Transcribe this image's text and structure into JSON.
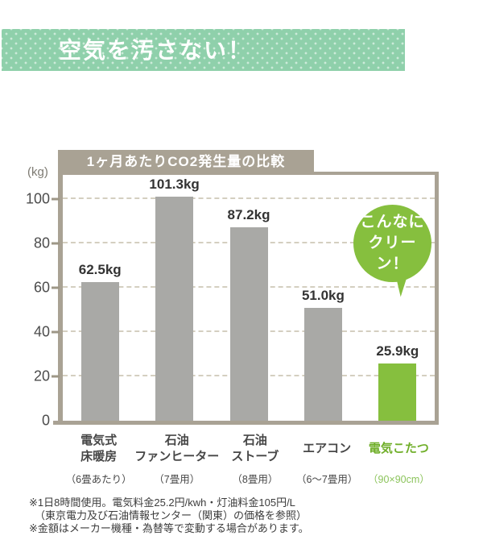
{
  "header": {
    "title": "空気を汚さない！"
  },
  "chart": {
    "title": "1ヶ月あたりCO2発生量の比較",
    "unit_label": "(kg)",
    "bubble": {
      "line1": "こんなに",
      "line2": "クリーン！"
    }
  },
  "chart_data": {
    "type": "bar",
    "title": "1ヶ月あたりCO2発生量の比較",
    "ylabel": "(kg)",
    "ylim": [
      0,
      111
    ],
    "yticks": [
      0,
      20,
      40,
      60,
      80,
      100
    ],
    "grid": "horizontal-dashed",
    "categories": [
      "電気式床暖房",
      "石油ファンヒーター",
      "石油ストーブ",
      "エアコン",
      "電気こたつ"
    ],
    "values": [
      62.5,
      101.3,
      87.2,
      51.0,
      25.9
    ],
    "bars": [
      {
        "name_lines": [
          "電気式",
          "床暖房"
        ],
        "sub": "（6畳あたり）",
        "value": 62.5,
        "value_label": "62.5kg",
        "color": "#a9a9a6",
        "text_color": "#474747",
        "sub_color": "#474747"
      },
      {
        "name_lines": [
          "石油",
          "ファンヒーター"
        ],
        "sub": "（7畳用）",
        "value": 101.3,
        "value_label": "101.3kg",
        "color": "#a9a9a6",
        "text_color": "#474747",
        "sub_color": "#474747"
      },
      {
        "name_lines": [
          "石油",
          "ストーブ"
        ],
        "sub": "（8畳用）",
        "value": 87.2,
        "value_label": "87.2kg",
        "color": "#a9a9a6",
        "text_color": "#474747",
        "sub_color": "#474747"
      },
      {
        "name_lines": [
          "エアコン"
        ],
        "sub": "（6～7畳用）",
        "value": 51.0,
        "value_label": "51.0kg",
        "color": "#a9a9a6",
        "text_color": "#474747",
        "sub_color": "#474747"
      },
      {
        "name_lines": [
          "電気こたつ"
        ],
        "sub": "（90×90cm）",
        "value": 25.9,
        "value_label": "25.9kg",
        "color": "#86bf3e",
        "text_color": "#6fae28",
        "sub_color": "#8cc45c"
      }
    ],
    "annotation": "こんなにクリーン！",
    "legend": "none"
  },
  "footer": {
    "notes": [
      "※1日8時間使用。電気料金25.2円/kwh・灯油料金105円/L",
      "（東京電力及び石油情報センター（関東）の価格を参照）",
      "※金額はメーカー機種・為替等で変動する場合があります。"
    ]
  },
  "colors": {
    "header_banner": "#8fd0ab",
    "axis_taupe": "#a9a294",
    "gridline": "#d4cfc0",
    "bar_gray": "#a9a9a6",
    "accent_green": "#86bf3e",
    "text_dark": "#333333"
  }
}
